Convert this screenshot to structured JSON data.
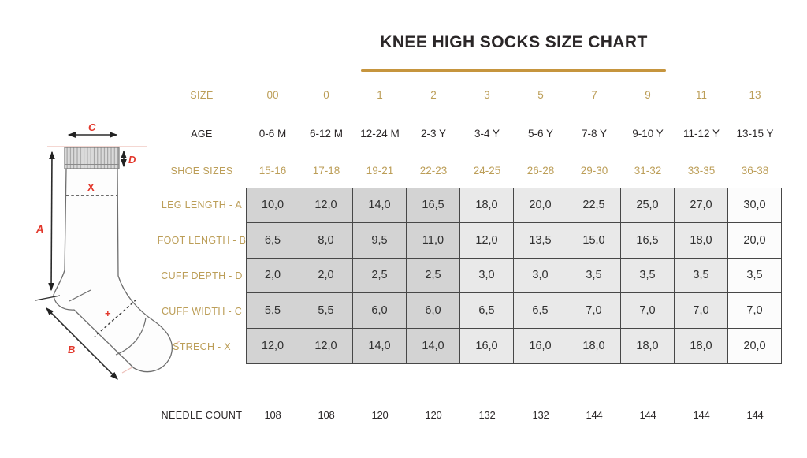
{
  "title": "KNEE HIGH SOCKS SIZE CHART",
  "colors": {
    "gold_text": "#bc9e58",
    "red_marker": "#e2382c",
    "ink_text": "#2b2728",
    "underline": "#c6953e",
    "table_border": "#474747",
    "cell_dark": "#d3d3d3",
    "cell_light": "#e9e9e9",
    "cell_white": "#fcfcfc"
  },
  "diagram": {
    "labels": {
      "leg_length": "A",
      "foot_length": "B",
      "cuff_width": "C",
      "cuff_depth": "D",
      "stretch": "X",
      "foot_mark": "+"
    }
  },
  "size_chart": {
    "header_rows": [
      {
        "id": "size",
        "style": "gold",
        "label": "SIZE",
        "values": [
          "00",
          "0",
          "1",
          "2",
          "3",
          "5",
          "7",
          "9",
          "11",
          "13"
        ]
      },
      {
        "id": "age",
        "style": "ink",
        "label": "AGE",
        "values": [
          "0-6 M",
          "6-12 M",
          "12-24 M",
          "2-3 Y",
          "3-4 Y",
          "5-6 Y",
          "7-8 Y",
          "9-10 Y",
          "11-12 Y",
          "13-15 Y"
        ]
      },
      {
        "id": "shoe",
        "style": "gold",
        "label": "SHOE SIZES",
        "values": [
          "15-16",
          "17-18",
          "19-21",
          "22-23",
          "24-25",
          "26-28",
          "29-30",
          "31-32",
          "33-35",
          "36-38"
        ]
      }
    ],
    "measurement_rows": [
      {
        "label": "LEG LENGTH - A",
        "values": [
          "10,0",
          "12,0",
          "14,0",
          "16,5",
          "18,0",
          "20,0",
          "22,5",
          "25,0",
          "27,0",
          "30,0"
        ]
      },
      {
        "label": "FOOT LENGTH - B",
        "values": [
          "6,5",
          "8,0",
          "9,5",
          "11,0",
          "12,0",
          "13,5",
          "15,0",
          "16,5",
          "18,0",
          "20,0"
        ]
      },
      {
        "label": "CUFF DEPTH - D",
        "values": [
          "2,0",
          "2,0",
          "2,5",
          "2,5",
          "3,0",
          "3,0",
          "3,5",
          "3,5",
          "3,5",
          "3,5"
        ]
      },
      {
        "label": "CUFF WIDTH - C",
        "values": [
          "5,5",
          "5,5",
          "6,0",
          "6,0",
          "6,5",
          "6,5",
          "7,0",
          "7,0",
          "7,0",
          "7,0"
        ]
      },
      {
        "label": "STRECH - X",
        "values": [
          "12,0",
          "12,0",
          "14,0",
          "14,0",
          "16,0",
          "16,0",
          "18,0",
          "18,0",
          "18,0",
          "20,0"
        ]
      }
    ],
    "footer_row": {
      "id": "needle",
      "style": "ink",
      "label": "NEEDLE COUNT",
      "values": [
        "108",
        "108",
        "120",
        "120",
        "132",
        "132",
        "144",
        "144",
        "144",
        "144"
      ]
    }
  }
}
